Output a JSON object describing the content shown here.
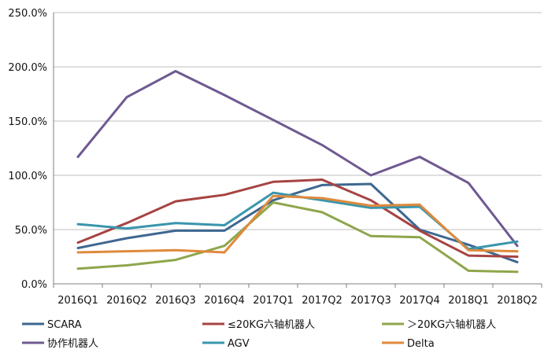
{
  "chart_data": {
    "type": "line",
    "title": "",
    "xlabel": "",
    "ylabel": "",
    "categories": [
      "2016Q1",
      "2016Q2",
      "2016Q3",
      "2016Q4",
      "2017Q1",
      "2017Q2",
      "2017Q3",
      "2017Q4",
      "2018Q1",
      "2018Q2"
    ],
    "y_ticks": [
      "0.0%",
      "50.0%",
      "100.0%",
      "150.0%",
      "200.0%",
      "250.0%"
    ],
    "ylim": [
      0,
      250
    ],
    "y_unit": "%",
    "grid": "horizontal",
    "legend_position": "bottom",
    "series": [
      {
        "name": "SCARA",
        "color": "#3e6791",
        "values": [
          33,
          42,
          49,
          49,
          77,
          91,
          92,
          50,
          36,
          20
        ]
      },
      {
        "name": "≤20KG六轴机器人",
        "color": "#a64442",
        "values": [
          38,
          56,
          76,
          82,
          94,
          96,
          77,
          49,
          26,
          25
        ]
      },
      {
        "name": "＞20KG六轴机器人",
        "color": "#8ea64b",
        "values": [
          14,
          17,
          22,
          35,
          75,
          66,
          44,
          43,
          12,
          11
        ]
      },
      {
        "name": "协作机器人",
        "color": "#6f5991",
        "values": [
          117,
          172,
          196,
          174,
          151,
          128,
          100,
          117,
          93,
          35
        ]
      },
      {
        "name": "AGV",
        "color": "#3a95ad",
        "values": [
          55,
          51,
          56,
          54,
          84,
          77,
          70,
          71,
          32,
          39
        ]
      },
      {
        "name": "Delta",
        "color": "#df8a3c",
        "values": [
          29,
          30,
          31,
          29,
          81,
          79,
          72,
          73,
          31,
          30
        ]
      }
    ]
  }
}
